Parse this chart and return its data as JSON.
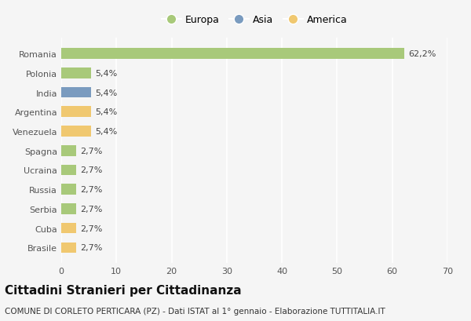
{
  "categories": [
    "Brasile",
    "Cuba",
    "Serbia",
    "Russia",
    "Ucraina",
    "Spagna",
    "Venezuela",
    "Argentina",
    "India",
    "Polonia",
    "Romania"
  ],
  "values": [
    2.7,
    2.7,
    2.7,
    2.7,
    2.7,
    2.7,
    5.4,
    5.4,
    5.4,
    5.4,
    62.2
  ],
  "colors": [
    "#f0c870",
    "#f0c870",
    "#a8c97a",
    "#a8c97a",
    "#a8c97a",
    "#a8c97a",
    "#f0c870",
    "#f0c870",
    "#7a9bbf",
    "#a8c97a",
    "#a8c97a"
  ],
  "labels": [
    "2,7%",
    "2,7%",
    "2,7%",
    "2,7%",
    "2,7%",
    "2,7%",
    "5,4%",
    "5,4%",
    "5,4%",
    "5,4%",
    "62,2%"
  ],
  "xlim": [
    0,
    70
  ],
  "xticks": [
    0,
    10,
    20,
    30,
    40,
    50,
    60,
    70
  ],
  "legend_labels": [
    "Europa",
    "Asia",
    "America"
  ],
  "legend_colors": [
    "#a8c97a",
    "#7a9bbf",
    "#f0c870"
  ],
  "title": "Cittadini Stranieri per Cittadinanza",
  "subtitle": "COMUNE DI CORLETO PERTICARA (PZ) - Dati ISTAT al 1° gennaio - Elaborazione TUTTITALIA.IT",
  "background_color": "#f5f5f5",
  "bar_height": 0.55,
  "grid_color": "#ffffff",
  "title_fontsize": 11,
  "subtitle_fontsize": 7.5,
  "label_fontsize": 8,
  "tick_fontsize": 8,
  "legend_fontsize": 9
}
